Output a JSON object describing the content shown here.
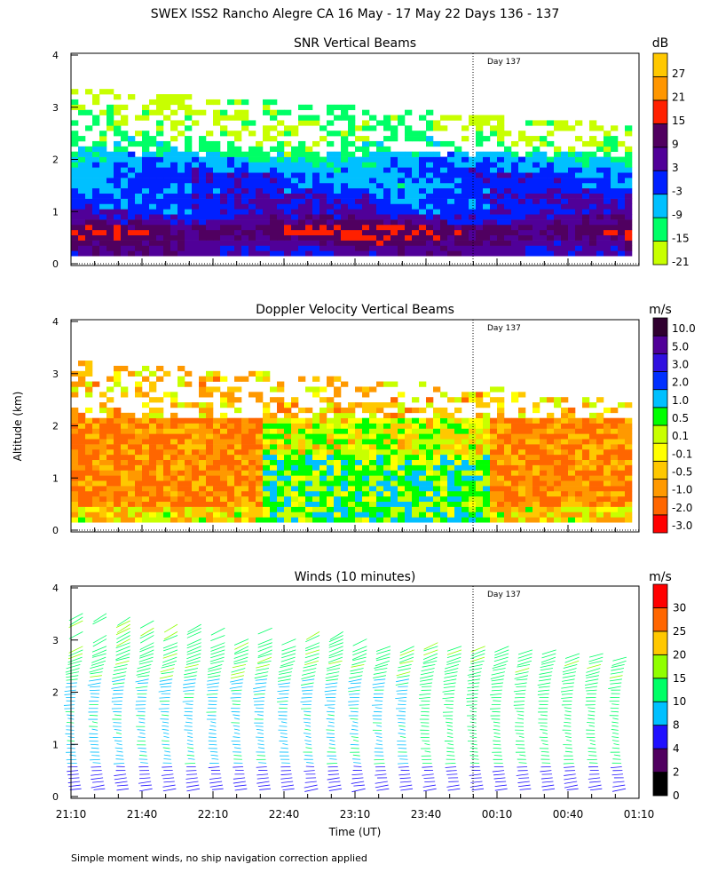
{
  "chart_data": [
    {
      "type": "heatmap",
      "title": "SNR Vertical Beams",
      "units": "dB",
      "annotation": "Day 137",
      "ylabel": "",
      "ylim": [
        0,
        4
      ],
      "yticks": [
        "0",
        "1",
        "2",
        "3",
        "4"
      ],
      "colorbar": {
        "labels": [
          "-21",
          "-15",
          "-9",
          "-3",
          "3",
          "9",
          "15",
          "21",
          "27"
        ],
        "colors": [
          "#c8ff00",
          "#00ff66",
          "#00c0ff",
          "#0020ff",
          "#500098",
          "#500060",
          "#ff2000",
          "#ff9600",
          "#ffc800"
        ]
      },
      "profile_altitudes_km": [
        0.2,
        0.4,
        0.6,
        0.8,
        1.0,
        1.2,
        1.4,
        1.6,
        1.8,
        2.0,
        2.2,
        2.5,
        2.8,
        3.1
      ],
      "profile_db": [
        2,
        7,
        11,
        2,
        -2,
        -1,
        -6,
        -4,
        -7,
        -10,
        -16,
        -19,
        -18,
        -19
      ]
    },
    {
      "type": "heatmap",
      "title": "Doppler Velocity Vertical Beams",
      "units": "m/s",
      "annotation": "Day 137",
      "ylabel": "Altitude (km)",
      "ylim": [
        0,
        4
      ],
      "yticks": [
        "0",
        "1",
        "2",
        "3",
        "4"
      ],
      "colorbar": {
        "labels": [
          "-3.0",
          "-2.0",
          "-1.0",
          "-0.5",
          "-0.1",
          "0.1",
          "0.5",
          "1.0",
          "2.0",
          "3.0",
          "5.0",
          "10.0"
        ],
        "colors": [
          "#ff0000",
          "#ff6600",
          "#ff9900",
          "#ffc800",
          "#ffff00",
          "#c8ff00",
          "#00ff00",
          "#00c0ff",
          "#0030ff",
          "#3010e0",
          "#500098",
          "#300030"
        ]
      }
    },
    {
      "type": "wind-barbs",
      "title": "Winds (10 minutes)",
      "units": "m/s",
      "annotation": "Day 137",
      "xlabel": "Time (UT)",
      "ylim": [
        0,
        4
      ],
      "yticks": [
        "0",
        "1",
        "2",
        "3",
        "4"
      ],
      "xticks": [
        "21:10",
        "21:40",
        "22:10",
        "22:40",
        "23:10",
        "23:40",
        "00:10",
        "00:40",
        "01:10"
      ],
      "colorbar": {
        "labels": [
          "0",
          "2",
          "4",
          "8",
          "10",
          "15",
          "20",
          "25",
          "30"
        ],
        "colors": [
          "#000000",
          "#500060",
          "#2010ff",
          "#00c0ff",
          "#00ff66",
          "#90ff00",
          "#ffc800",
          "#ff6600",
          "#ff0000"
        ]
      }
    }
  ],
  "title": "SWEX ISS2 Rancho Alegre CA  16 May - 17 May 22 Days 136 - 137",
  "footer": "Simple moment winds, no ship navigation correction applied"
}
